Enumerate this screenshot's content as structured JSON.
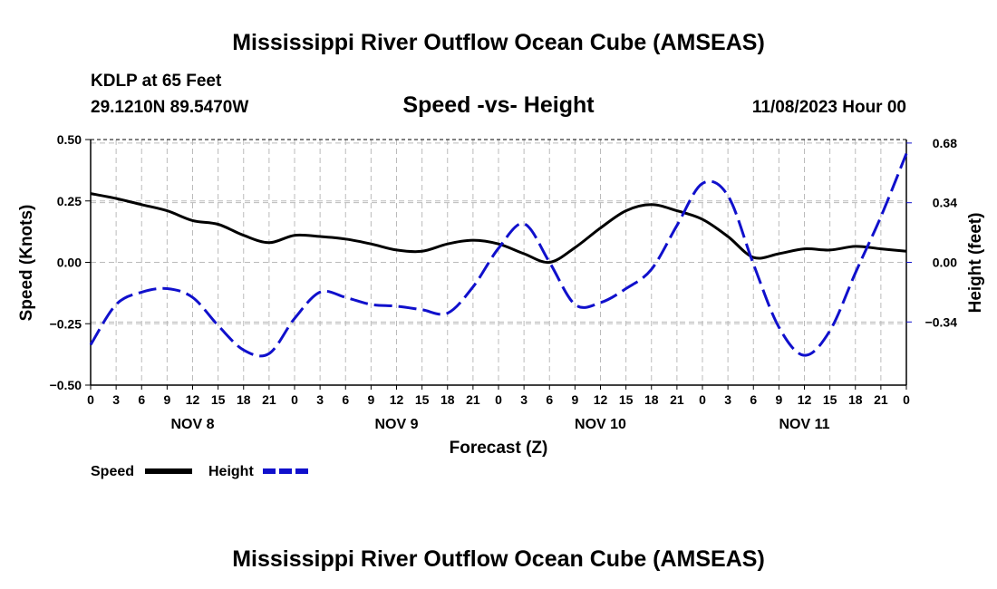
{
  "chart_data": {
    "type": "line",
    "title": "Mississippi River Outflow Ocean Cube (AMSEAS)",
    "footer_title": "Mississippi River Outflow Ocean Cube (AMSEAS)",
    "station": "KDLP at 65 Feet",
    "location": "29.1210N  89.5470W",
    "subtitle": "Speed -vs- Height",
    "datetime": "11/08/2023 Hour 00",
    "xlabel": "Forecast (Z)",
    "ylabel_left": "Speed (Knots)",
    "ylabel_right": "Height (feet)",
    "x_range": [
      0,
      96
    ],
    "y_left_range": [
      -0.5,
      0.5
    ],
    "y_right_range": [
      -0.7,
      0.7
    ],
    "x_tick_labels": [
      "0",
      "3",
      "6",
      "9",
      "12",
      "15",
      "18",
      "21",
      "0",
      "3",
      "6",
      "9",
      "12",
      "15",
      "18",
      "21",
      "0",
      "3",
      "6",
      "9",
      "12",
      "15",
      "18",
      "21",
      "0",
      "3",
      "6",
      "9",
      "12",
      "15",
      "18",
      "21",
      "0"
    ],
    "day_labels": [
      {
        "label": "NOV 8",
        "x": 12
      },
      {
        "label": "NOV 9",
        "x": 36
      },
      {
        "label": "NOV 10",
        "x": 60
      },
      {
        "label": "NOV 11",
        "x": 84
      }
    ],
    "y_left_ticks": [
      {
        "value": 0.5,
        "label": "0.50"
      },
      {
        "value": 0.25,
        "label": "0.25"
      },
      {
        "value": 0.0,
        "label": "0.00"
      },
      {
        "value": -0.25,
        "label": "−0.25"
      },
      {
        "value": -0.5,
        "label": "−0.50"
      }
    ],
    "y_right_ticks": [
      {
        "value": 0.68,
        "label": "0.68"
      },
      {
        "value": 0.34,
        "label": "0.34"
      },
      {
        "value": 0.0,
        "label": "0.00"
      },
      {
        "value": -0.34,
        "label": "−0.34"
      }
    ],
    "series": [
      {
        "name": "Speed",
        "axis": "left",
        "color": "#000000",
        "dash": "solid",
        "x": [
          0,
          3,
          6,
          9,
          12,
          15,
          18,
          21,
          24,
          27,
          30,
          33,
          36,
          39,
          42,
          45,
          48,
          51,
          54,
          57,
          60,
          63,
          66,
          69,
          72,
          75,
          78,
          81,
          84,
          87,
          90,
          93,
          96
        ],
        "values": [
          0.28,
          0.26,
          0.235,
          0.21,
          0.17,
          0.155,
          0.11,
          0.08,
          0.11,
          0.105,
          0.095,
          0.075,
          0.05,
          0.045,
          0.075,
          0.09,
          0.075,
          0.035,
          0.0,
          0.06,
          0.14,
          0.21,
          0.235,
          0.21,
          0.175,
          0.105,
          0.02,
          0.035,
          0.055,
          0.05,
          0.065,
          0.055,
          0.045
        ]
      },
      {
        "name": "Height",
        "axis": "right",
        "color": "#1010cc",
        "dash": "dashed",
        "x": [
          0,
          3,
          6,
          9,
          12,
          15,
          18,
          21,
          24,
          27,
          30,
          33,
          36,
          39,
          42,
          45,
          48,
          51,
          54,
          57,
          60,
          63,
          66,
          69,
          72,
          75,
          78,
          81,
          84,
          87,
          90,
          93,
          96
        ],
        "values": [
          -0.47,
          -0.24,
          -0.17,
          -0.15,
          -0.2,
          -0.36,
          -0.5,
          -0.52,
          -0.32,
          -0.17,
          -0.2,
          -0.24,
          -0.25,
          -0.27,
          -0.29,
          -0.14,
          0.08,
          0.22,
          0.0,
          -0.24,
          -0.23,
          -0.15,
          -0.04,
          0.21,
          0.45,
          0.38,
          -0.01,
          -0.37,
          -0.53,
          -0.39,
          -0.06,
          0.26,
          0.62
        ]
      }
    ],
    "legend": [
      {
        "label": "Speed",
        "color": "#000000",
        "dash": "solid"
      },
      {
        "label": "Height",
        "color": "#1010cc",
        "dash": "dashed"
      }
    ]
  }
}
